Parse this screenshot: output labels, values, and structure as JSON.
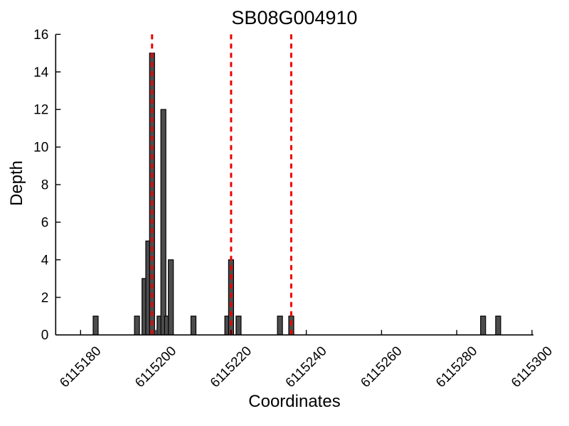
{
  "chart_data": {
    "type": "bar",
    "title": "SB08G004910",
    "xlabel": "Coordinates",
    "ylabel": "Depth",
    "xlim": [
      6115173,
      6115300
    ],
    "ylim": [
      0,
      16
    ],
    "x_ticks": [
      6115180,
      6115200,
      6115220,
      6115240,
      6115260,
      6115280,
      6115300
    ],
    "y_ticks": [
      0,
      2,
      4,
      6,
      8,
      10,
      12,
      14,
      16
    ],
    "bars": [
      {
        "x": 6115184,
        "depth": 1
      },
      {
        "x": 6115195,
        "depth": 1
      },
      {
        "x": 6115197,
        "depth": 3
      },
      {
        "x": 6115198,
        "depth": 5
      },
      {
        "x": 6115199,
        "depth": 15
      },
      {
        "x": 6115201,
        "depth": 1
      },
      {
        "x": 6115202,
        "depth": 12
      },
      {
        "x": 6115203,
        "depth": 1
      },
      {
        "x": 6115204,
        "depth": 4
      },
      {
        "x": 6115210,
        "depth": 1
      },
      {
        "x": 6115219,
        "depth": 1
      },
      {
        "x": 6115220,
        "depth": 4
      },
      {
        "x": 6115222,
        "depth": 1
      },
      {
        "x": 6115233,
        "depth": 1
      },
      {
        "x": 6115236,
        "depth": 1
      },
      {
        "x": 6115287,
        "depth": 1
      },
      {
        "x": 6115291,
        "depth": 1
      }
    ],
    "vlines": [
      6115199,
      6115220,
      6115236
    ],
    "vline_style": "dashed",
    "colors": {
      "bar_fill": "#4d4d4d",
      "bar_edge": "#000000",
      "vline": "#ee0000",
      "axis": "#000000",
      "background": "#ffffff"
    },
    "legend": null,
    "grid": false
  }
}
